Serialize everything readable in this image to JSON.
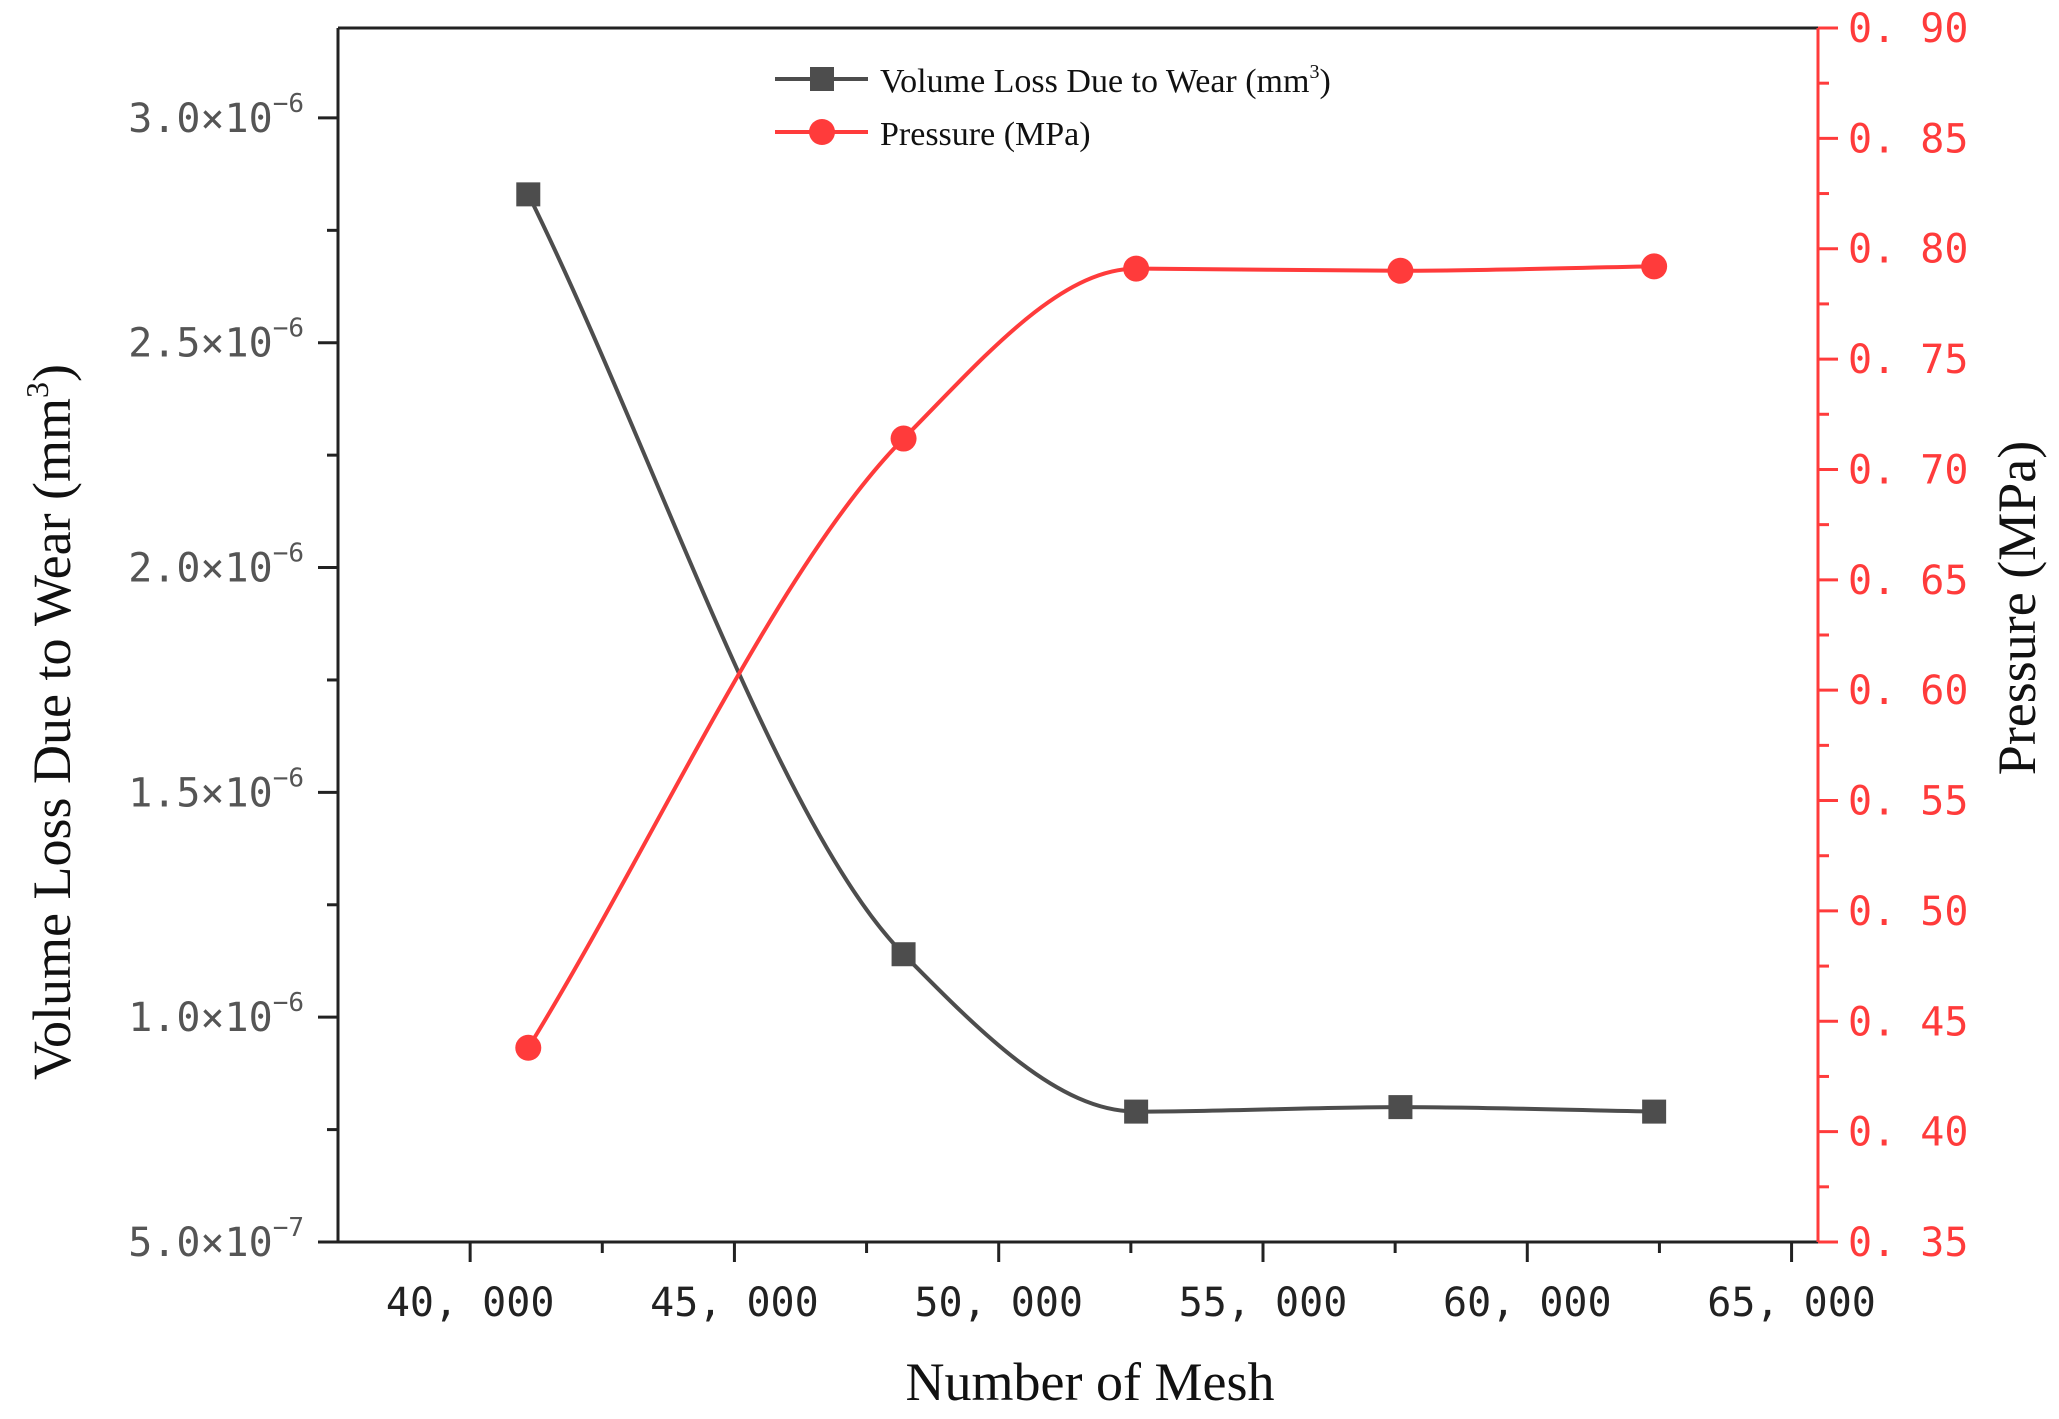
{
  "chart_data": {
    "type": "line",
    "xlabel": "Number of Mesh",
    "ylabel_left": "Volume Loss Due to Wear (mm",
    "ylabel_left_sup": "3",
    "ylabel_left_close": ")",
    "ylabel_right": "Pressure (MPa)",
    "xlim": [
      37500,
      65500
    ],
    "x_ticks": [
      40000,
      45000,
      50000,
      55000,
      60000,
      65000
    ],
    "x_tick_labels": [
      "40, 000",
      "45, 000",
      "50, 000",
      "55, 000",
      "60, 000",
      "65, 000"
    ],
    "ylim_left": [
      5e-07,
      3.2e-06
    ],
    "y_left_ticks": [
      5e-07,
      1e-06,
      1.5e-06,
      2e-06,
      2.5e-06,
      3e-06
    ],
    "y_left_tick_mantissa": [
      "5.0",
      "1.0",
      "1.5",
      "2.0",
      "2.5",
      "3.0"
    ],
    "y_left_tick_exp": [
      "−7",
      "−6",
      "−6",
      "−6",
      "−6",
      "−6"
    ],
    "ylim_right": [
      0.35,
      0.9
    ],
    "y_right_ticks": [
      0.35,
      0.4,
      0.45,
      0.5,
      0.55,
      0.6,
      0.65,
      0.7,
      0.75,
      0.8,
      0.85,
      0.9
    ],
    "y_right_tick_labels": [
      "0. 35",
      "0. 40",
      "0. 45",
      "0. 50",
      "0. 55",
      "0. 60",
      "0. 65",
      "0. 70",
      "0. 75",
      "0. 80",
      "0. 85",
      "0. 90"
    ],
    "series": [
      {
        "name": "Volume Loss Due to Wear (mm",
        "name_sup": "3",
        "name_close": ")",
        "axis": "left",
        "marker": "square",
        "color": "#4d4d4d",
        "x": [
          41100,
          48200,
          52600,
          57600,
          62400
        ],
        "y": [
          2.83e-06,
          1.14e-06,
          7.9e-07,
          8e-07,
          7.9e-07
        ]
      },
      {
        "name": "Pressure (MPa)",
        "axis": "right",
        "marker": "circle",
        "color": "#ff3b3b",
        "x": [
          41100,
          48200,
          52600,
          57600,
          62400
        ],
        "y": [
          0.438,
          0.714,
          0.791,
          0.79,
          0.792
        ]
      }
    ],
    "legend_position": "top-center",
    "grid": false
  }
}
